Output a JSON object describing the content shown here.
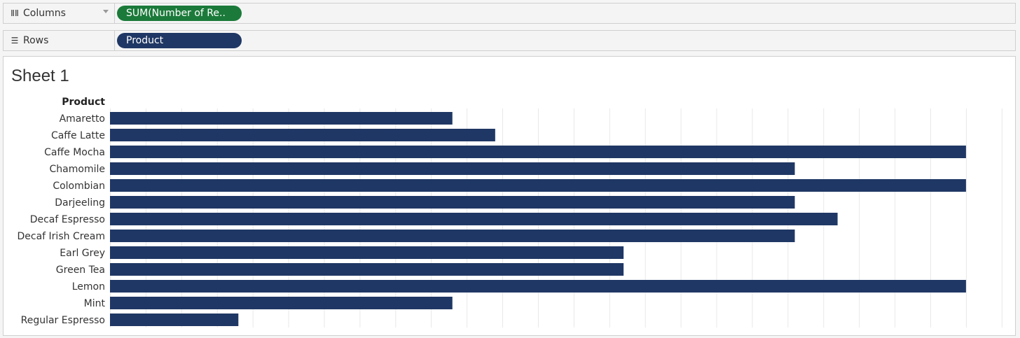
{
  "shelves": {
    "columns": {
      "label": "Columns",
      "icon": "columns-icon",
      "pill": "SUM(Number of Re..",
      "pill_color": "#1b7a3a"
    },
    "rows": {
      "label": "Rows",
      "icon": "rows-icon",
      "pill": "Product",
      "pill_color": "#1f3764"
    }
  },
  "sheet": {
    "title": "Sheet 1"
  },
  "chart_data": {
    "type": "bar",
    "orientation": "horizontal",
    "row_header": "Product",
    "categories": [
      "Amaretto",
      "Caffe Latte",
      "Caffe Mocha",
      "Chamomile",
      "Colombian",
      "Darjeeling",
      "Decaf Espresso",
      "Decaf Irish Cream",
      "Earl Grey",
      "Green Tea",
      "Lemon",
      "Mint",
      "Regular Espresso"
    ],
    "values": [
      48,
      54,
      120,
      96,
      120,
      96,
      102,
      96,
      72,
      72,
      120,
      48,
      18
    ],
    "xlim": [
      0,
      126
    ],
    "x_grid_step": 5,
    "grid": true,
    "x_axis_labels_shown": false,
    "bar_color": "#1f3764",
    "grid_color": "#e8e8e8"
  }
}
